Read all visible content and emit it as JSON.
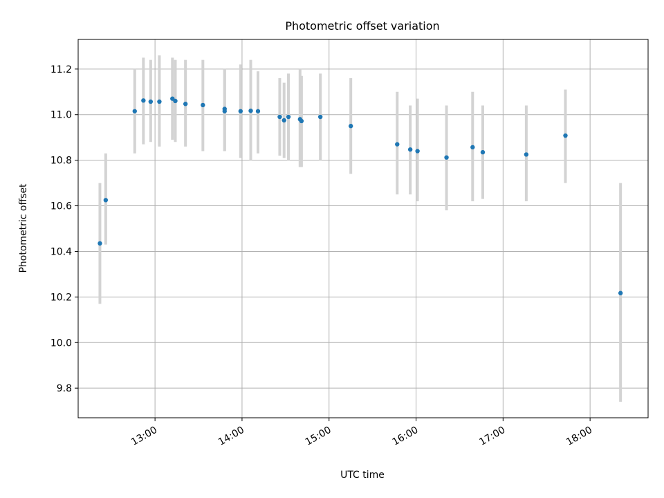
{
  "chart_data": {
    "type": "scatter",
    "title": "Photometric offset variation",
    "xlabel": "UTC time",
    "ylabel": "Photometric offset",
    "x_tick_labels": [
      "13:00",
      "14:00",
      "15:00",
      "16:00",
      "17:00",
      "18:00"
    ],
    "x_ticks": [
      "13:00",
      "14:00",
      "15:00",
      "16:00",
      "17:00",
      "18:00"
    ],
    "y_tick_labels": [
      "9.8",
      "10.0",
      "10.2",
      "10.4",
      "10.6",
      "10.8",
      "11.0",
      "11.2"
    ],
    "y_ticks": [
      9.8,
      10.0,
      10.2,
      10.4,
      10.6,
      10.8,
      11.0,
      11.2
    ],
    "xlim": [
      "12:07",
      "18:40"
    ],
    "ylim": [
      9.67,
      11.33
    ],
    "grid": true,
    "colors": {
      "point": "#1f77b4",
      "errorbar": "#d3d3d3",
      "grid": "#b0b0b0"
    },
    "points": [
      {
        "x": "12:22",
        "y": 10.435,
        "lo": 10.17,
        "hi": 10.7
      },
      {
        "x": "12:26",
        "y": 10.625,
        "lo": 10.43,
        "hi": 10.83
      },
      {
        "x": "12:46",
        "y": 11.015,
        "lo": 10.83,
        "hi": 11.2
      },
      {
        "x": "12:52",
        "y": 11.062,
        "lo": 10.87,
        "hi": 11.25
      },
      {
        "x": "12:57",
        "y": 11.057,
        "lo": 10.88,
        "hi": 11.24
      },
      {
        "x": "13:03",
        "y": 11.057,
        "lo": 10.86,
        "hi": 11.26
      },
      {
        "x": "13:12",
        "y": 11.07,
        "lo": 10.89,
        "hi": 11.25
      },
      {
        "x": "13:14",
        "y": 11.06,
        "lo": 10.88,
        "hi": 11.24
      },
      {
        "x": "13:21",
        "y": 11.047,
        "lo": 10.86,
        "hi": 11.24
      },
      {
        "x": "13:33",
        "y": 11.042,
        "lo": 10.84,
        "hi": 11.24
      },
      {
        "x": "13:48",
        "y": 11.025,
        "lo": 10.84,
        "hi": 11.2
      },
      {
        "x": "13:48",
        "y": 11.015,
        "lo": 10.84,
        "hi": 11.2
      },
      {
        "x": "13:59",
        "y": 11.015,
        "lo": 10.81,
        "hi": 11.22
      },
      {
        "x": "14:06",
        "y": 11.017,
        "lo": 10.8,
        "hi": 11.24
      },
      {
        "x": "14:11",
        "y": 11.015,
        "lo": 10.83,
        "hi": 11.19
      },
      {
        "x": "14:26",
        "y": 10.99,
        "lo": 10.82,
        "hi": 11.16
      },
      {
        "x": "14:29",
        "y": 10.975,
        "lo": 10.81,
        "hi": 11.14
      },
      {
        "x": "14:32",
        "y": 10.99,
        "lo": 10.8,
        "hi": 11.18
      },
      {
        "x": "14:40",
        "y": 10.98,
        "lo": 10.77,
        "hi": 11.2
      },
      {
        "x": "14:41",
        "y": 10.972,
        "lo": 10.77,
        "hi": 11.17
      },
      {
        "x": "14:54",
        "y": 10.99,
        "lo": 10.8,
        "hi": 11.18
      },
      {
        "x": "15:15",
        "y": 10.95,
        "lo": 10.74,
        "hi": 11.16
      },
      {
        "x": "15:47",
        "y": 10.87,
        "lo": 10.65,
        "hi": 11.1
      },
      {
        "x": "15:56",
        "y": 10.847,
        "lo": 10.65,
        "hi": 11.04
      },
      {
        "x": "16:01",
        "y": 10.84,
        "lo": 10.62,
        "hi": 11.07
      },
      {
        "x": "16:21",
        "y": 10.812,
        "lo": 10.58,
        "hi": 11.04
      },
      {
        "x": "16:39",
        "y": 10.857,
        "lo": 10.62,
        "hi": 11.1
      },
      {
        "x": "16:46",
        "y": 10.835,
        "lo": 10.63,
        "hi": 11.04
      },
      {
        "x": "17:16",
        "y": 10.825,
        "lo": 10.62,
        "hi": 11.04
      },
      {
        "x": "17:43",
        "y": 10.908,
        "lo": 10.7,
        "hi": 11.11
      },
      {
        "x": "18:21",
        "y": 10.217,
        "lo": 9.74,
        "hi": 10.7
      }
    ]
  }
}
